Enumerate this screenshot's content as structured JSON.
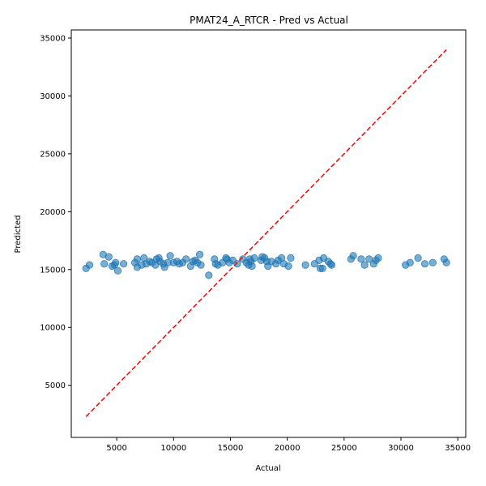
{
  "chart_data": {
    "type": "scatter",
    "title": "PMAT24_A_RTCR - Pred vs Actual",
    "xlabel": "Actual",
    "ylabel": "Predicted",
    "xlim": [
      1000,
      35700
    ],
    "ylim": [
      500,
      35700
    ],
    "xticks": [
      5000,
      10000,
      15000,
      20000,
      25000,
      30000,
      35000
    ],
    "yticks": [
      5000,
      10000,
      15000,
      20000,
      25000,
      30000,
      35000
    ],
    "grid": false,
    "point_color": "#1f77b4",
    "reference_line": {
      "color": "#ff0000",
      "style": "dashed",
      "from": [
        2300,
        2300
      ],
      "to": [
        34000,
        34000
      ]
    },
    "points": [
      [
        2300,
        15100
      ],
      [
        2600,
        15400
      ],
      [
        3800,
        16300
      ],
      [
        3900,
        15500
      ],
      [
        4300,
        16100
      ],
      [
        4600,
        15300
      ],
      [
        4800,
        15400
      ],
      [
        4900,
        15600
      ],
      [
        5100,
        14900
      ],
      [
        5600,
        15500
      ],
      [
        6600,
        15600
      ],
      [
        6800,
        15900
      ],
      [
        6800,
        15200
      ],
      [
        7200,
        15400
      ],
      [
        7400,
        16000
      ],
      [
        7600,
        15500
      ],
      [
        7900,
        15700
      ],
      [
        8100,
        15600
      ],
      [
        8400,
        15400
      ],
      [
        8500,
        15900
      ],
      [
        8700,
        16000
      ],
      [
        8800,
        15700
      ],
      [
        9100,
        15500
      ],
      [
        9200,
        15200
      ],
      [
        9500,
        15600
      ],
      [
        9700,
        16200
      ],
      [
        10000,
        15600
      ],
      [
        10300,
        15700
      ],
      [
        10500,
        15500
      ],
      [
        10800,
        15600
      ],
      [
        11100,
        15900
      ],
      [
        11500,
        15300
      ],
      [
        11700,
        15700
      ],
      [
        11900,
        15800
      ],
      [
        12100,
        15600
      ],
      [
        12300,
        16300
      ],
      [
        12400,
        15400
      ],
      [
        13100,
        14500
      ],
      [
        13600,
        15900
      ],
      [
        13700,
        15500
      ],
      [
        13900,
        15400
      ],
      [
        14300,
        15600
      ],
      [
        14600,
        16000
      ],
      [
        14700,
        15900
      ],
      [
        14900,
        15600
      ],
      [
        15200,
        15800
      ],
      [
        15600,
        15500
      ],
      [
        16100,
        15900
      ],
      [
        16400,
        15600
      ],
      [
        16600,
        15400
      ],
      [
        16700,
        15900
      ],
      [
        16900,
        15300
      ],
      [
        17100,
        16000
      ],
      [
        17700,
        15800
      ],
      [
        17800,
        16100
      ],
      [
        18000,
        16000
      ],
      [
        18200,
        15700
      ],
      [
        18300,
        15300
      ],
      [
        18600,
        15700
      ],
      [
        19000,
        15500
      ],
      [
        19200,
        15800
      ],
      [
        19500,
        16000
      ],
      [
        19700,
        15500
      ],
      [
        20100,
        15300
      ],
      [
        20300,
        16000
      ],
      [
        21600,
        15400
      ],
      [
        22400,
        15500
      ],
      [
        22800,
        15800
      ],
      [
        22900,
        15100
      ],
      [
        23200,
        16000
      ],
      [
        23600,
        15700
      ],
      [
        23900,
        15400
      ],
      [
        25600,
        15900
      ],
      [
        25800,
        16200
      ],
      [
        26500,
        15900
      ],
      [
        26800,
        15400
      ],
      [
        27200,
        15900
      ],
      [
        27600,
        15500
      ],
      [
        27800,
        15800
      ],
      [
        28000,
        16000
      ],
      [
        30400,
        15400
      ],
      [
        30800,
        15600
      ],
      [
        31500,
        16000
      ],
      [
        32100,
        15500
      ],
      [
        32800,
        15600
      ],
      [
        33800,
        15900
      ],
      [
        34000,
        15600
      ],
      [
        16800,
        15700
      ],
      [
        23100,
        15100
      ],
      [
        23800,
        15500
      ]
    ]
  }
}
